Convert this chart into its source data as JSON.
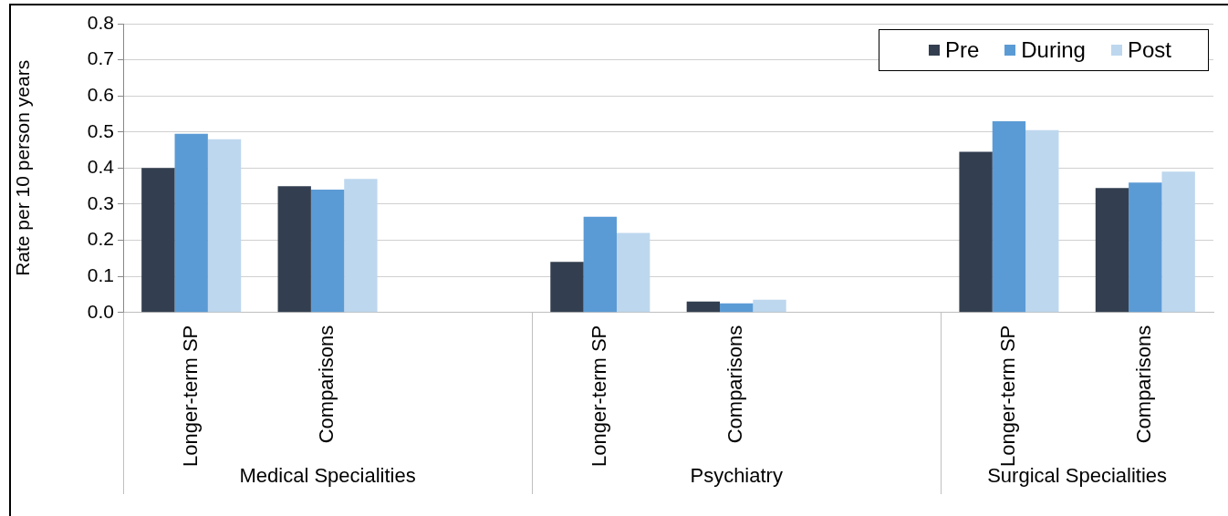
{
  "chart_data": {
    "type": "bar",
    "ylabel": "Rate per 10 person years",
    "categories": [
      "Longer-term SP",
      "Comparisons",
      null,
      "Longer-term SP",
      "Comparisons",
      null,
      "Longer-term SP",
      "Comparisons"
    ],
    "series": [
      {
        "name": "Pre",
        "color": "#333f50",
        "values": [
          0.4,
          0.35,
          null,
          0.14,
          0.03,
          null,
          0.445,
          0.345
        ]
      },
      {
        "name": "During",
        "color": "#5b9bd5",
        "values": [
          0.495,
          0.34,
          null,
          0.265,
          0.025,
          null,
          0.53,
          0.36
        ]
      },
      {
        "name": "Post",
        "color": "#bdd7ee",
        "values": [
          0.48,
          0.37,
          null,
          0.22,
          0.035,
          null,
          0.505,
          0.39
        ]
      }
    ],
    "annotations": [
      "Medical Specialities",
      "Psychiatry",
      "Surgical Specialities"
    ],
    "ylim": [
      0,
      0.8
    ],
    "yticks": [
      {
        "value": 0,
        "label": "0.0"
      },
      {
        "value": 0.1,
        "label": "0.1"
      },
      {
        "value": 0.2,
        "label": "0.2"
      },
      {
        "value": 0.3,
        "label": "0.3"
      },
      {
        "value": 0.4,
        "label": "0.4"
      },
      {
        "value": 0.5,
        "label": "0.5"
      },
      {
        "value": 0.6,
        "label": "0.6"
      },
      {
        "value": 0.7,
        "label": "0.7"
      },
      {
        "value": 0.8,
        "label": "0.8"
      }
    ],
    "grid": "y",
    "legend": "top right"
  }
}
